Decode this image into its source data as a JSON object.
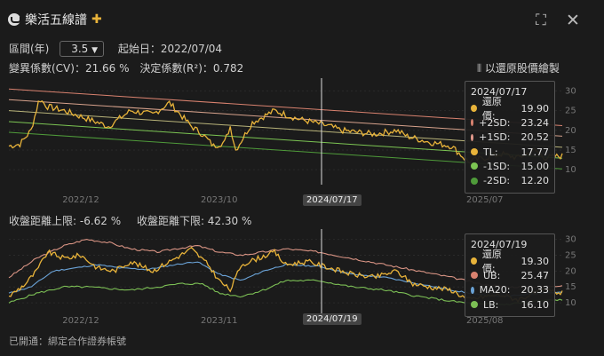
{
  "header": {
    "title": "樂活五線譜",
    "expand_icon": "expand-icon",
    "close_icon": "close-icon"
  },
  "controls": {
    "range_label": "區間(年)",
    "range_value": "3.5",
    "start_label": "起始日：2022/07/04"
  },
  "stats": {
    "cv_text": "變異係數(CV)：21.66 %",
    "r2_text": "決定係數(R²)：0.782",
    "adj_text": "以還原股價繪製"
  },
  "bands": {
    "upper_text": "收盤距離上限: -6.62 %",
    "lower_text": "收盤距離下限: 42.30 %"
  },
  "footer": {
    "text": "已開通：綁定合作證券帳號"
  },
  "colors": {
    "price": "#e8b33a",
    "plus2": "#d9826f",
    "plus1": "#d7a28c",
    "tl": "#b9b47a",
    "minus1": "#7cc553",
    "minus2": "#4f9b3a",
    "ub": "#d99484",
    "ma20": "#6aa2d6",
    "lb": "#7cbf55"
  },
  "chart_data": [
    {
      "type": "line",
      "x_ticks": [
        "2022/12",
        "2023/10",
        "2024/07/17",
        "2025/07"
      ],
      "y_ticks": [
        10,
        15,
        20,
        25,
        30
      ],
      "ylim": [
        8,
        31
      ],
      "tooltip": {
        "date": "2024/07/17",
        "rows": [
          {
            "label": "還原價:",
            "value": "19.90",
            "color": "#e8b33a"
          },
          {
            "label": "+2SD:",
            "value": "23.24",
            "color": "#d9826f"
          },
          {
            "label": "+1SD:",
            "value": "20.52",
            "color": "#e39a8c"
          },
          {
            "label": "TL:",
            "value": "17.77",
            "color": "#e8b33a"
          },
          {
            "label": "-1SD:",
            "value": "15.00",
            "color": "#7cc553"
          },
          {
            "label": "-2SD:",
            "value": "12.20",
            "color": "#4f9b3a"
          }
        ]
      },
      "lines": {
        "plus2": [
          30.5,
          21.2
        ],
        "plus1": [
          27.8,
          18.5
        ],
        "tl": [
          25.0,
          15.7
        ],
        "minus1": [
          22.2,
          12.9
        ],
        "minus2": [
          19.5,
          10.2
        ]
      },
      "price_anchors": [
        [
          0,
          16
        ],
        [
          0.02,
          16.5
        ],
        [
          0.04,
          20
        ],
        [
          0.055,
          28
        ],
        [
          0.07,
          26
        ],
        [
          0.1,
          25
        ],
        [
          0.14,
          23
        ],
        [
          0.18,
          21
        ],
        [
          0.22,
          25
        ],
        [
          0.26,
          24
        ],
        [
          0.29,
          27
        ],
        [
          0.31,
          24
        ],
        [
          0.33,
          21
        ],
        [
          0.35,
          19
        ],
        [
          0.37,
          16
        ],
        [
          0.39,
          17
        ],
        [
          0.4,
          21
        ],
        [
          0.41,
          15
        ],
        [
          0.44,
          22
        ],
        [
          0.48,
          25
        ],
        [
          0.52,
          23
        ],
        [
          0.55,
          22
        ],
        [
          0.58,
          21
        ],
        [
          0.6,
          20
        ],
        [
          0.63,
          19.5
        ],
        [
          0.66,
          19
        ],
        [
          0.7,
          20
        ],
        [
          0.72,
          18.5
        ],
        [
          0.76,
          17
        ],
        [
          0.8,
          16
        ],
        [
          0.83,
          12
        ],
        [
          0.86,
          13
        ],
        [
          0.89,
          14
        ],
        [
          0.92,
          13
        ],
        [
          0.95,
          15
        ],
        [
          0.97,
          13
        ],
        [
          1.0,
          13.5
        ]
      ]
    },
    {
      "type": "line",
      "x_ticks": [
        "2022/12",
        "2023/11",
        "2024/07/19",
        "2025/08"
      ],
      "y_ticks": [
        10,
        15,
        20,
        25,
        30
      ],
      "ylim": [
        7.5,
        31
      ],
      "tooltip": {
        "date": "2024/07/19",
        "rows": [
          {
            "label": "還原價:",
            "value": "19.30",
            "color": "#e8b33a"
          },
          {
            "label": "UB:",
            "value": "25.47",
            "color": "#d9826f"
          },
          {
            "label": "MA20:",
            "value": "20.33",
            "color": "#6aa2d6"
          },
          {
            "label": "LB:",
            "value": "16.10",
            "color": "#7cbf55"
          }
        ]
      },
      "price_anchors": [
        [
          0,
          12
        ],
        [
          0.03,
          16
        ],
        [
          0.05,
          20
        ],
        [
          0.07,
          26
        ],
        [
          0.1,
          24
        ],
        [
          0.13,
          25
        ],
        [
          0.16,
          21
        ],
        [
          0.19,
          20
        ],
        [
          0.22,
          23
        ],
        [
          0.26,
          20
        ],
        [
          0.3,
          24
        ],
        [
          0.33,
          27
        ],
        [
          0.36,
          22
        ],
        [
          0.38,
          17
        ],
        [
          0.4,
          14
        ],
        [
          0.42,
          22
        ],
        [
          0.45,
          24
        ],
        [
          0.48,
          26
        ],
        [
          0.5,
          22
        ],
        [
          0.54,
          23
        ],
        [
          0.58,
          21
        ],
        [
          0.62,
          19
        ],
        [
          0.66,
          18
        ],
        [
          0.7,
          20
        ],
        [
          0.73,
          16
        ],
        [
          0.76,
          15
        ],
        [
          0.8,
          14
        ],
        [
          0.83,
          11
        ],
        [
          0.86,
          12
        ],
        [
          0.89,
          12.5
        ],
        [
          0.92,
          11
        ],
        [
          0.95,
          13
        ],
        [
          0.97,
          14
        ],
        [
          1.0,
          13
        ]
      ],
      "ma20_anchors": [
        [
          0,
          13
        ],
        [
          0.04,
          15
        ],
        [
          0.08,
          20
        ],
        [
          0.12,
          21
        ],
        [
          0.16,
          22
        ],
        [
          0.2,
          21
        ],
        [
          0.25,
          20.5
        ],
        [
          0.3,
          22
        ],
        [
          0.34,
          23
        ],
        [
          0.38,
          19
        ],
        [
          0.42,
          17
        ],
        [
          0.46,
          20
        ],
        [
          0.5,
          22
        ],
        [
          0.56,
          21.5
        ],
        [
          0.62,
          19
        ],
        [
          0.68,
          18
        ],
        [
          0.74,
          16
        ],
        [
          0.8,
          14
        ],
        [
          0.85,
          12.5
        ],
        [
          0.9,
          12
        ],
        [
          0.95,
          13
        ],
        [
          1.0,
          13.3
        ]
      ],
      "ub_anchors": [
        [
          0,
          18
        ],
        [
          0.05,
          24
        ],
        [
          0.1,
          28
        ],
        [
          0.14,
          30
        ],
        [
          0.18,
          29
        ],
        [
          0.22,
          27
        ],
        [
          0.27,
          26
        ],
        [
          0.3,
          27
        ],
        [
          0.34,
          28
        ],
        [
          0.38,
          26
        ],
        [
          0.42,
          25
        ],
        [
          0.46,
          26
        ],
        [
          0.5,
          27
        ],
        [
          0.56,
          26
        ],
        [
          0.62,
          24
        ],
        [
          0.68,
          22
        ],
        [
          0.74,
          20
        ],
        [
          0.8,
          18
        ],
        [
          0.85,
          16
        ],
        [
          0.9,
          15
        ],
        [
          0.95,
          15
        ],
        [
          1.0,
          15.5
        ]
      ],
      "lb_anchors": [
        [
          0,
          10
        ],
        [
          0.05,
          13
        ],
        [
          0.1,
          15
        ],
        [
          0.14,
          15
        ],
        [
          0.18,
          14.5
        ],
        [
          0.22,
          14
        ],
        [
          0.27,
          15
        ],
        [
          0.31,
          16
        ],
        [
          0.35,
          16
        ],
        [
          0.38,
          13
        ],
        [
          0.42,
          12
        ],
        [
          0.46,
          14
        ],
        [
          0.5,
          17
        ],
        [
          0.56,
          17
        ],
        [
          0.62,
          15
        ],
        [
          0.68,
          14
        ],
        [
          0.74,
          12
        ],
        [
          0.8,
          10.5
        ],
        [
          0.85,
          9.5
        ],
        [
          0.9,
          9.5
        ],
        [
          0.95,
          10.5
        ],
        [
          1.0,
          11
        ]
      ]
    }
  ]
}
